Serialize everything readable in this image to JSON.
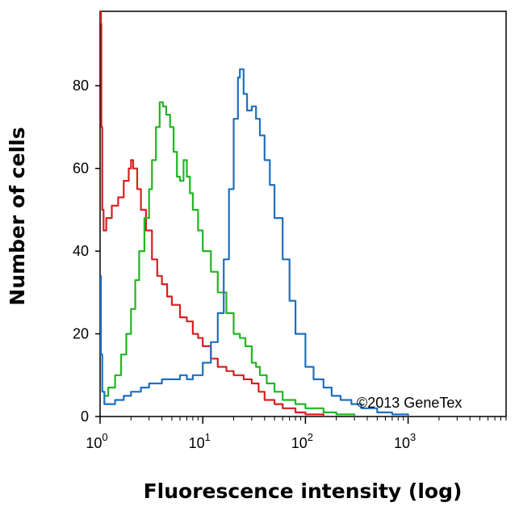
{
  "chart_data": {
    "type": "line",
    "title": "",
    "xlabel": "Fluorescence intensity (log)",
    "ylabel": "Number of cells",
    "x_scale": "log",
    "xlim": [
      1,
      9000
    ],
    "ylim": [
      0,
      98
    ],
    "x_ticks": [
      {
        "value": 1,
        "base": "10",
        "exp": "0"
      },
      {
        "value": 10,
        "base": "10",
        "exp": "1"
      },
      {
        "value": 100,
        "base": "10",
        "exp": "2"
      },
      {
        "value": 1000,
        "base": "10",
        "exp": "3"
      }
    ],
    "y_ticks": [
      0,
      20,
      40,
      60,
      80
    ],
    "grid": false,
    "legend": "none",
    "watermark": "©2013 GeneTex",
    "series": [
      {
        "color": "#d62020",
        "points": [
          [
            1,
            98
          ],
          [
            1.02,
            95
          ],
          [
            1.03,
            70
          ],
          [
            1.05,
            50
          ],
          [
            1.08,
            45
          ],
          [
            1.15,
            48
          ],
          [
            1.3,
            51
          ],
          [
            1.5,
            53
          ],
          [
            1.7,
            57
          ],
          [
            1.9,
            60
          ],
          [
            2.0,
            62
          ],
          [
            2.1,
            60
          ],
          [
            2.3,
            55
          ],
          [
            2.5,
            50
          ],
          [
            2.8,
            45
          ],
          [
            3.2,
            38
          ],
          [
            3.6,
            34
          ],
          [
            4.0,
            32
          ],
          [
            4.5,
            29
          ],
          [
            5.0,
            27
          ],
          [
            6.0,
            24
          ],
          [
            7.0,
            23
          ],
          [
            8.0,
            20
          ],
          [
            9.0,
            19
          ],
          [
            10,
            17
          ],
          [
            12,
            14
          ],
          [
            14,
            12
          ],
          [
            17,
            11
          ],
          [
            20,
            10
          ],
          [
            25,
            9
          ],
          [
            30,
            8
          ],
          [
            35,
            6
          ],
          [
            40,
            4
          ],
          [
            50,
            3
          ],
          [
            60,
            2
          ],
          [
            80,
            1
          ],
          [
            100,
            0.5
          ],
          [
            150,
            0
          ]
        ]
      },
      {
        "color": "#22b522",
        "points": [
          [
            1.1,
            5
          ],
          [
            1.2,
            7
          ],
          [
            1.4,
            10
          ],
          [
            1.6,
            15
          ],
          [
            1.8,
            20
          ],
          [
            2.0,
            26
          ],
          [
            2.2,
            33
          ],
          [
            2.4,
            40
          ],
          [
            2.7,
            48
          ],
          [
            3.0,
            55
          ],
          [
            3.2,
            62
          ],
          [
            3.5,
            70
          ],
          [
            3.8,
            76
          ],
          [
            4.1,
            75
          ],
          [
            4.4,
            73
          ],
          [
            4.8,
            70
          ],
          [
            5.2,
            64
          ],
          [
            5.6,
            58
          ],
          [
            6.0,
            57
          ],
          [
            6.5,
            62
          ],
          [
            7.0,
            58
          ],
          [
            7.5,
            54
          ],
          [
            8.0,
            50
          ],
          [
            9.0,
            45
          ],
          [
            10,
            40
          ],
          [
            12,
            35
          ],
          [
            14,
            30
          ],
          [
            17,
            25
          ],
          [
            20,
            20
          ],
          [
            23,
            19
          ],
          [
            26,
            17
          ],
          [
            30,
            13
          ],
          [
            33,
            12
          ],
          [
            36,
            10
          ],
          [
            42,
            8
          ],
          [
            50,
            6
          ],
          [
            60,
            4
          ],
          [
            80,
            3
          ],
          [
            100,
            2
          ],
          [
            150,
            1
          ],
          [
            200,
            0.5
          ],
          [
            300,
            0
          ]
        ]
      },
      {
        "color": "#1f6fbf",
        "points": [
          [
            1,
            34
          ],
          [
            1.02,
            15
          ],
          [
            1.05,
            6
          ],
          [
            1.1,
            3
          ],
          [
            1.2,
            3
          ],
          [
            1.4,
            4
          ],
          [
            1.7,
            5
          ],
          [
            2.0,
            6
          ],
          [
            2.5,
            7
          ],
          [
            3.0,
            8
          ],
          [
            4.0,
            9
          ],
          [
            5.0,
            9
          ],
          [
            6.0,
            10
          ],
          [
            7.0,
            9
          ],
          [
            8.0,
            10
          ],
          [
            10,
            13
          ],
          [
            12,
            18
          ],
          [
            14,
            25
          ],
          [
            16,
            38
          ],
          [
            18,
            55
          ],
          [
            20,
            72
          ],
          [
            22,
            82
          ],
          [
            23,
            84
          ],
          [
            25,
            78
          ],
          [
            27,
            74
          ],
          [
            30,
            75
          ],
          [
            33,
            72
          ],
          [
            36,
            68
          ],
          [
            40,
            62
          ],
          [
            45,
            56
          ],
          [
            50,
            48
          ],
          [
            60,
            38
          ],
          [
            70,
            28
          ],
          [
            80,
            20
          ],
          [
            100,
            12
          ],
          [
            120,
            9
          ],
          [
            150,
            7
          ],
          [
            180,
            5
          ],
          [
            220,
            4
          ],
          [
            280,
            3
          ],
          [
            350,
            2
          ],
          [
            500,
            1
          ],
          [
            700,
            0.5
          ],
          [
            1000,
            0
          ]
        ]
      }
    ]
  }
}
